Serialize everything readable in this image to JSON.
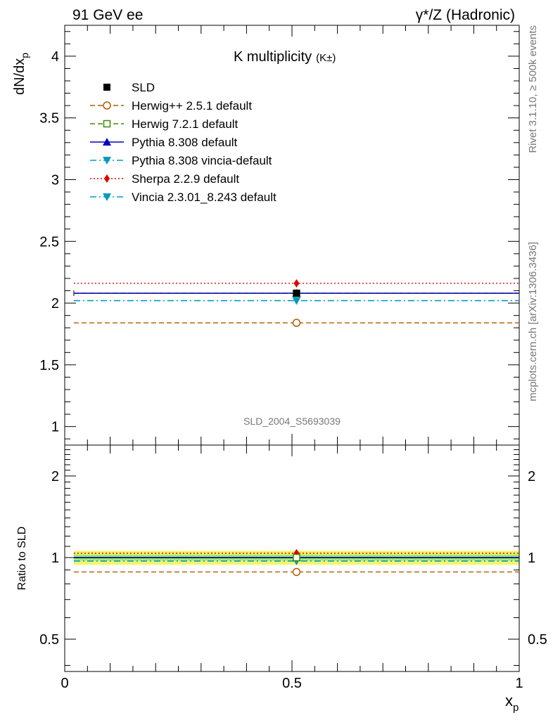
{
  "header": {
    "left": "91 GeV ee",
    "right": "γ*/Z (Hadronic)"
  },
  "side_labels": {
    "rivet": "Rivet 3.1.10, ≥ 500k events",
    "mcplots": "mcplots.cern.ch [arXiv:1306.3436]"
  },
  "watermark": "SLD_2004_S5693039",
  "chart_data": [
    {
      "type": "line",
      "title": "K multiplicity",
      "title_suffix": "(K±)",
      "ylabel": "dN/dx",
      "ylabel_sub": "p",
      "ylim": [
        0.85,
        4.25
      ],
      "yscale": "linear",
      "yticks": [
        "1",
        "1.5",
        "2",
        "2.5",
        "3",
        "3.5",
        "4"
      ],
      "xlim": [
        0,
        1
      ],
      "legend_position": "top-left",
      "bin": [
        0.02,
        1.0
      ],
      "x": [
        0.51
      ],
      "series": [
        {
          "name": "SLD",
          "values": [
            2.08
          ],
          "color": "#000000",
          "marker": "square",
          "line": "none"
        },
        {
          "name": "Herwig++ 2.5.1 default",
          "values": [
            1.84
          ],
          "color": "#b05a00",
          "marker": "open-circle",
          "line": "dashed"
        },
        {
          "name": "Herwig 7.2.1 default",
          "values": [
            2.08
          ],
          "color": "#3c8c00",
          "marker": "open-square",
          "line": "dashed"
        },
        {
          "name": "Pythia 8.308 default",
          "values": [
            2.08
          ],
          "color": "#0000c0",
          "marker": "triangle-up",
          "line": "solid"
        },
        {
          "name": "Pythia 8.308 vincia-default",
          "values": [
            2.02
          ],
          "color": "#009bbf",
          "marker": "triangle-down",
          "line": "dashdot"
        },
        {
          "name": "Sherpa 2.2.9 default",
          "values": [
            2.16
          ],
          "color": "#e00000",
          "marker": "diamond",
          "line": "dotted"
        },
        {
          "name": "Vincia 2.3.01_8.243 default",
          "values": [
            2.02
          ],
          "color": "#009bbf",
          "marker": "triangle-down",
          "line": "dashdot"
        }
      ]
    },
    {
      "type": "line",
      "ylabel": "Ratio to SLD",
      "xlabel": "x",
      "xlabel_sub": "p",
      "yscale": "log",
      "ylim": [
        0.38,
        2.6
      ],
      "yticks": [
        "0.5",
        "1",
        "2"
      ],
      "xticks": [
        "0",
        "0.5",
        "1"
      ],
      "xlim": [
        0,
        1
      ],
      "bands": {
        "inner": [
          0.975,
          1.025
        ],
        "outer": [
          0.94,
          1.06
        ],
        "inner_color": "#9ee873",
        "outer_color": "#f5f56e"
      },
      "x": [
        0.51
      ],
      "series": [
        {
          "name": "SLD",
          "values": [
            1.0
          ]
        },
        {
          "name": "Herwig++ 2.5.1 default",
          "values": [
            0.885
          ]
        },
        {
          "name": "Herwig 7.2.1 default",
          "values": [
            1.0
          ]
        },
        {
          "name": "Pythia 8.308 default",
          "values": [
            1.0
          ]
        },
        {
          "name": "Pythia 8.308 vincia-default",
          "values": [
            0.971
          ]
        },
        {
          "name": "Sherpa 2.2.9 default",
          "values": [
            1.038
          ]
        },
        {
          "name": "Vincia 2.3.01_8.243 default",
          "values": [
            0.971
          ]
        }
      ]
    }
  ]
}
